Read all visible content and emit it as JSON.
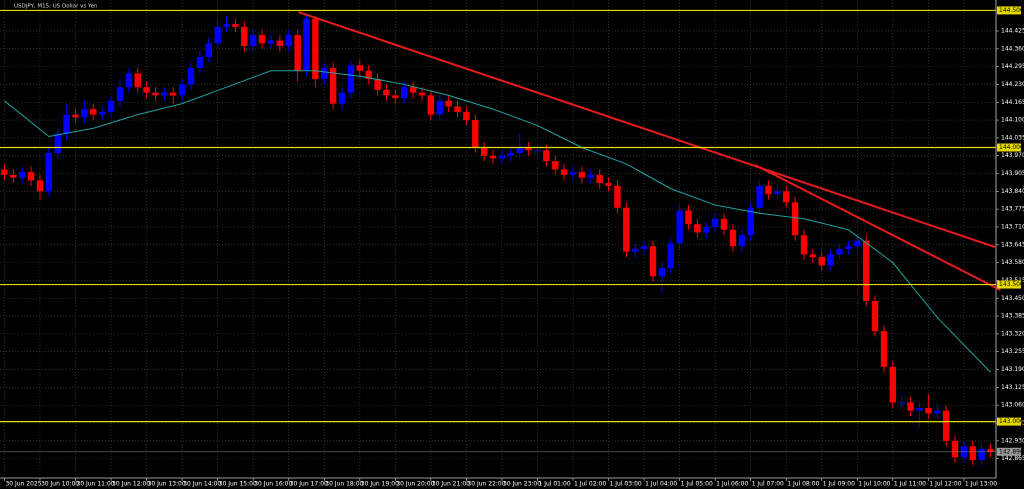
{
  "chart_data": {
    "type": "candlestick",
    "title": "USDJPY, M15: US Dollar vs Yen",
    "up_color": "#0000ff",
    "down_color": "#ff0000",
    "grid": true,
    "ylim": [
      142.798,
      144.538
    ],
    "yticks": [
      {
        "value": 144.425,
        "label": "144.425"
      },
      {
        "value": 144.36,
        "label": "144.360"
      },
      {
        "value": 144.295,
        "label": "144.295"
      },
      {
        "value": 144.23,
        "label": "144.230"
      },
      {
        "value": 144.165,
        "label": "144.165"
      },
      {
        "value": 144.1,
        "label": "144.100"
      },
      {
        "value": 144.035,
        "label": "144.035"
      },
      {
        "value": 143.97,
        "label": "143.970"
      },
      {
        "value": 143.905,
        "label": "143.905"
      },
      {
        "value": 143.84,
        "label": "143.840"
      },
      {
        "value": 143.775,
        "label": "143.775"
      },
      {
        "value": 143.71,
        "label": "143.710"
      },
      {
        "value": 143.645,
        "label": "143.645"
      },
      {
        "value": 143.58,
        "label": "143.580"
      },
      {
        "value": 143.515,
        "label": "143.515"
      },
      {
        "value": 143.45,
        "label": "143.450"
      },
      {
        "value": 143.385,
        "label": "143.385"
      },
      {
        "value": 143.32,
        "label": "143.320"
      },
      {
        "value": 143.255,
        "label": "143.255"
      },
      {
        "value": 143.19,
        "label": "143.190"
      },
      {
        "value": 143.125,
        "label": "143.125"
      },
      {
        "value": 143.06,
        "label": "143.060"
      },
      {
        "value": 142.995,
        "label": "142.995"
      },
      {
        "value": 142.93,
        "label": "142.930"
      },
      {
        "value": 142.865,
        "label": "142.865"
      }
    ],
    "categories": [
      "30 Jun 2025",
      null,
      null,
      null,
      "30 Jun 10:00",
      null,
      null,
      null,
      "30 Jun 11:00",
      null,
      null,
      null,
      "30 Jun 12:00",
      null,
      null,
      null,
      "30 Jun 13:00",
      null,
      null,
      null,
      "30 Jun 14:00",
      null,
      null,
      null,
      "30 Jun 15:00",
      null,
      null,
      null,
      "30 Jun 16:00",
      null,
      null,
      null,
      "30 Jun 17:00",
      null,
      null,
      null,
      "30 Jun 18:00",
      null,
      null,
      null,
      "30 Jun 19:00",
      null,
      null,
      null,
      "30 Jun 20:00",
      null,
      null,
      null,
      "30 Jun 21:00",
      null,
      null,
      null,
      "30 Jun 22:00",
      null,
      null,
      null,
      "30 Jun 23:00",
      null,
      null,
      null,
      "1 Jul 01:00",
      null,
      null,
      null,
      "1 Jul 02:00",
      null,
      null,
      null,
      "1 Jul 03:00",
      null,
      null,
      null,
      "1 Jul 04:00",
      null,
      null,
      null,
      "1 Jul 05:00",
      null,
      null,
      null,
      "1 Jul 06:00",
      null,
      null,
      null,
      "1 Jul 07:00",
      null,
      null,
      null,
      "1 Jul 08:00",
      null,
      null,
      null,
      "1 Jul 09:00",
      null,
      null,
      null,
      "1 Jul 10:00",
      null,
      null,
      null,
      "1 Jul 11:00",
      null,
      null,
      null,
      "1 Jul 12:00",
      null,
      null,
      null,
      "1 Jul 13:00",
      null,
      null,
      null
    ],
    "open": [
      143.92,
      143.9,
      143.89,
      143.91,
      143.88,
      143.84,
      143.98,
      144.05,
      144.12,
      144.11,
      144.14,
      144.12,
      144.13,
      144.17,
      144.22,
      144.27,
      144.22,
      144.2,
      144.19,
      144.2,
      144.19,
      144.23,
      144.29,
      144.33,
      144.38,
      144.44,
      144.45,
      144.44,
      144.37,
      144.41,
      144.38,
      144.39,
      144.37,
      144.41,
      144.28,
      144.47,
      144.25,
      144.29,
      144.16,
      144.2,
      144.3,
      144.28,
      144.25,
      144.21,
      144.19,
      144.18,
      144.22,
      144.2,
      144.19,
      144.12,
      144.17,
      144.15,
      144.13,
      144.1,
      144.0,
      143.97,
      143.96,
      143.97,
      143.98,
      144.0,
      143.99,
      143.99,
      143.95,
      143.92,
      143.9,
      143.91,
      143.89,
      143.9,
      143.87,
      143.86,
      143.78,
      143.62,
      143.63,
      143.64,
      143.53,
      143.56,
      143.65,
      143.77,
      143.72,
      143.69,
      143.71,
      143.74,
      143.7,
      143.64,
      143.68,
      143.78,
      143.86,
      143.83,
      143.84,
      143.8,
      143.68,
      143.61,
      143.6,
      143.57,
      143.61,
      143.63,
      143.64,
      143.66,
      143.44,
      143.33,
      143.2,
      143.07,
      143.07,
      143.04,
      143.05,
      143.03,
      143.04,
      142.93,
      142.87,
      142.91,
      142.86,
      142.9
    ],
    "high": [
      143.94,
      143.92,
      143.93,
      143.93,
      143.9,
      144.0,
      144.07,
      144.16,
      144.14,
      144.17,
      144.16,
      144.15,
      144.19,
      144.25,
      144.29,
      144.29,
      144.24,
      144.22,
      144.22,
      144.22,
      144.25,
      144.31,
      144.35,
      144.4,
      144.47,
      144.48,
      144.47,
      144.46,
      144.43,
      144.43,
      144.41,
      144.41,
      144.43,
      144.43,
      144.49,
      144.48,
      144.31,
      144.31,
      144.22,
      144.32,
      144.32,
      144.3,
      144.27,
      144.23,
      144.21,
      144.24,
      144.24,
      144.22,
      144.21,
      144.19,
      144.19,
      144.17,
      144.15,
      144.12,
      144.02,
      143.99,
      143.99,
      144.0,
      144.05,
      144.02,
      144.01,
      144.01,
      143.97,
      143.94,
      143.93,
      143.93,
      143.92,
      143.92,
      143.89,
      143.88,
      143.8,
      143.65,
      143.66,
      143.66,
      143.58,
      143.67,
      143.79,
      143.79,
      143.74,
      143.73,
      143.76,
      143.76,
      143.72,
      143.7,
      143.8,
      143.88,
      143.88,
      143.86,
      143.86,
      143.82,
      143.7,
      143.63,
      143.62,
      143.63,
      143.65,
      143.66,
      143.68,
      143.68,
      143.46,
      143.35,
      143.22,
      143.09,
      143.09,
      143.07,
      143.1,
      143.06,
      143.06,
      142.95,
      142.93,
      142.93,
      142.92,
      142.92
    ],
    "low": [
      143.88,
      143.87,
      143.87,
      143.86,
      143.81,
      143.82,
      143.96,
      144.03,
      144.09,
      144.09,
      144.1,
      144.1,
      144.11,
      144.15,
      144.2,
      144.2,
      144.18,
      144.17,
      144.17,
      144.16,
      144.17,
      144.21,
      144.27,
      144.31,
      144.36,
      144.42,
      144.42,
      144.35,
      144.35,
      144.36,
      144.36,
      144.35,
      144.35,
      144.24,
      144.26,
      144.22,
      144.23,
      144.14,
      144.14,
      144.18,
      144.26,
      144.23,
      144.19,
      144.17,
      144.16,
      144.16,
      144.18,
      144.17,
      144.1,
      144.1,
      144.13,
      144.11,
      144.08,
      143.98,
      143.95,
      143.94,
      143.94,
      143.95,
      143.96,
      143.97,
      143.97,
      143.93,
      143.9,
      143.88,
      143.88,
      143.87,
      143.87,
      143.85,
      143.84,
      143.76,
      143.6,
      143.6,
      143.61,
      143.51,
      143.47,
      143.54,
      143.63,
      143.7,
      143.67,
      143.67,
      143.69,
      143.68,
      143.62,
      143.62,
      143.66,
      143.76,
      143.81,
      143.81,
      143.78,
      143.66,
      143.59,
      143.58,
      143.55,
      143.55,
      143.59,
      143.61,
      143.62,
      143.42,
      143.31,
      143.18,
      143.05,
      143.05,
      143.02,
      142.98,
      143.01,
      143.01,
      142.91,
      142.85,
      142.85,
      142.84,
      142.84,
      142.87
    ],
    "close": [
      143.9,
      143.89,
      143.91,
      143.88,
      143.84,
      143.98,
      144.05,
      144.12,
      144.11,
      144.14,
      144.12,
      144.13,
      144.17,
      144.22,
      144.27,
      144.22,
      144.2,
      144.19,
      144.2,
      144.19,
      144.23,
      144.29,
      144.33,
      144.38,
      144.44,
      144.45,
      144.44,
      144.37,
      144.41,
      144.38,
      144.39,
      144.37,
      144.41,
      144.28,
      144.47,
      144.25,
      144.29,
      144.16,
      144.2,
      144.3,
      144.28,
      144.25,
      144.21,
      144.19,
      144.18,
      144.22,
      144.2,
      144.19,
      144.12,
      144.17,
      144.15,
      144.13,
      144.1,
      144.0,
      143.97,
      143.96,
      143.97,
      143.98,
      144.0,
      143.99,
      143.99,
      143.95,
      143.92,
      143.9,
      143.91,
      143.89,
      143.9,
      143.87,
      143.86,
      143.78,
      143.62,
      143.63,
      143.64,
      143.53,
      143.56,
      143.65,
      143.77,
      143.72,
      143.69,
      143.71,
      143.74,
      143.7,
      143.64,
      143.68,
      143.78,
      143.86,
      143.83,
      143.84,
      143.8,
      143.68,
      143.61,
      143.6,
      143.57,
      143.61,
      143.63,
      143.64,
      143.66,
      143.44,
      143.33,
      143.2,
      143.07,
      143.07,
      143.04,
      143.05,
      143.03,
      143.04,
      142.93,
      142.87,
      142.91,
      142.86,
      142.9,
      142.89
    ],
    "moving_average": {
      "color": "#1fa3a3",
      "x": [
        0,
        5,
        10,
        15,
        20,
        25,
        30,
        35,
        40,
        45,
        50,
        55,
        60,
        65,
        70,
        75,
        80,
        85,
        90,
        95,
        100,
        105,
        111
      ],
      "values": [
        144.17,
        144.04,
        144.07,
        144.12,
        144.16,
        144.22,
        144.28,
        144.28,
        144.26,
        144.23,
        144.19,
        144.14,
        144.08,
        144.0,
        143.94,
        143.85,
        143.79,
        143.76,
        143.74,
        143.7,
        143.58,
        143.38,
        143.18
      ]
    },
    "trendlines": [
      {
        "color": "#e81b1b",
        "x": [
          33.1,
          111.5
        ],
        "values": [
          144.494,
          143.637
        ]
      },
      {
        "color": "#e81b1b",
        "x": [
          84.5,
          112.1
        ],
        "values": [
          143.936,
          143.48
        ]
      }
    ],
    "levels_color": "#e6d800",
    "levels": [
      {
        "value": 144.5,
        "label": "144.500"
      },
      {
        "value": 144.0,
        "label": "144.000"
      },
      {
        "value": 143.5,
        "label": "143.500"
      },
      {
        "value": 143.0,
        "label": "143.000"
      }
    ],
    "current_price": {
      "value": 142.89,
      "label": "142.890"
    }
  }
}
